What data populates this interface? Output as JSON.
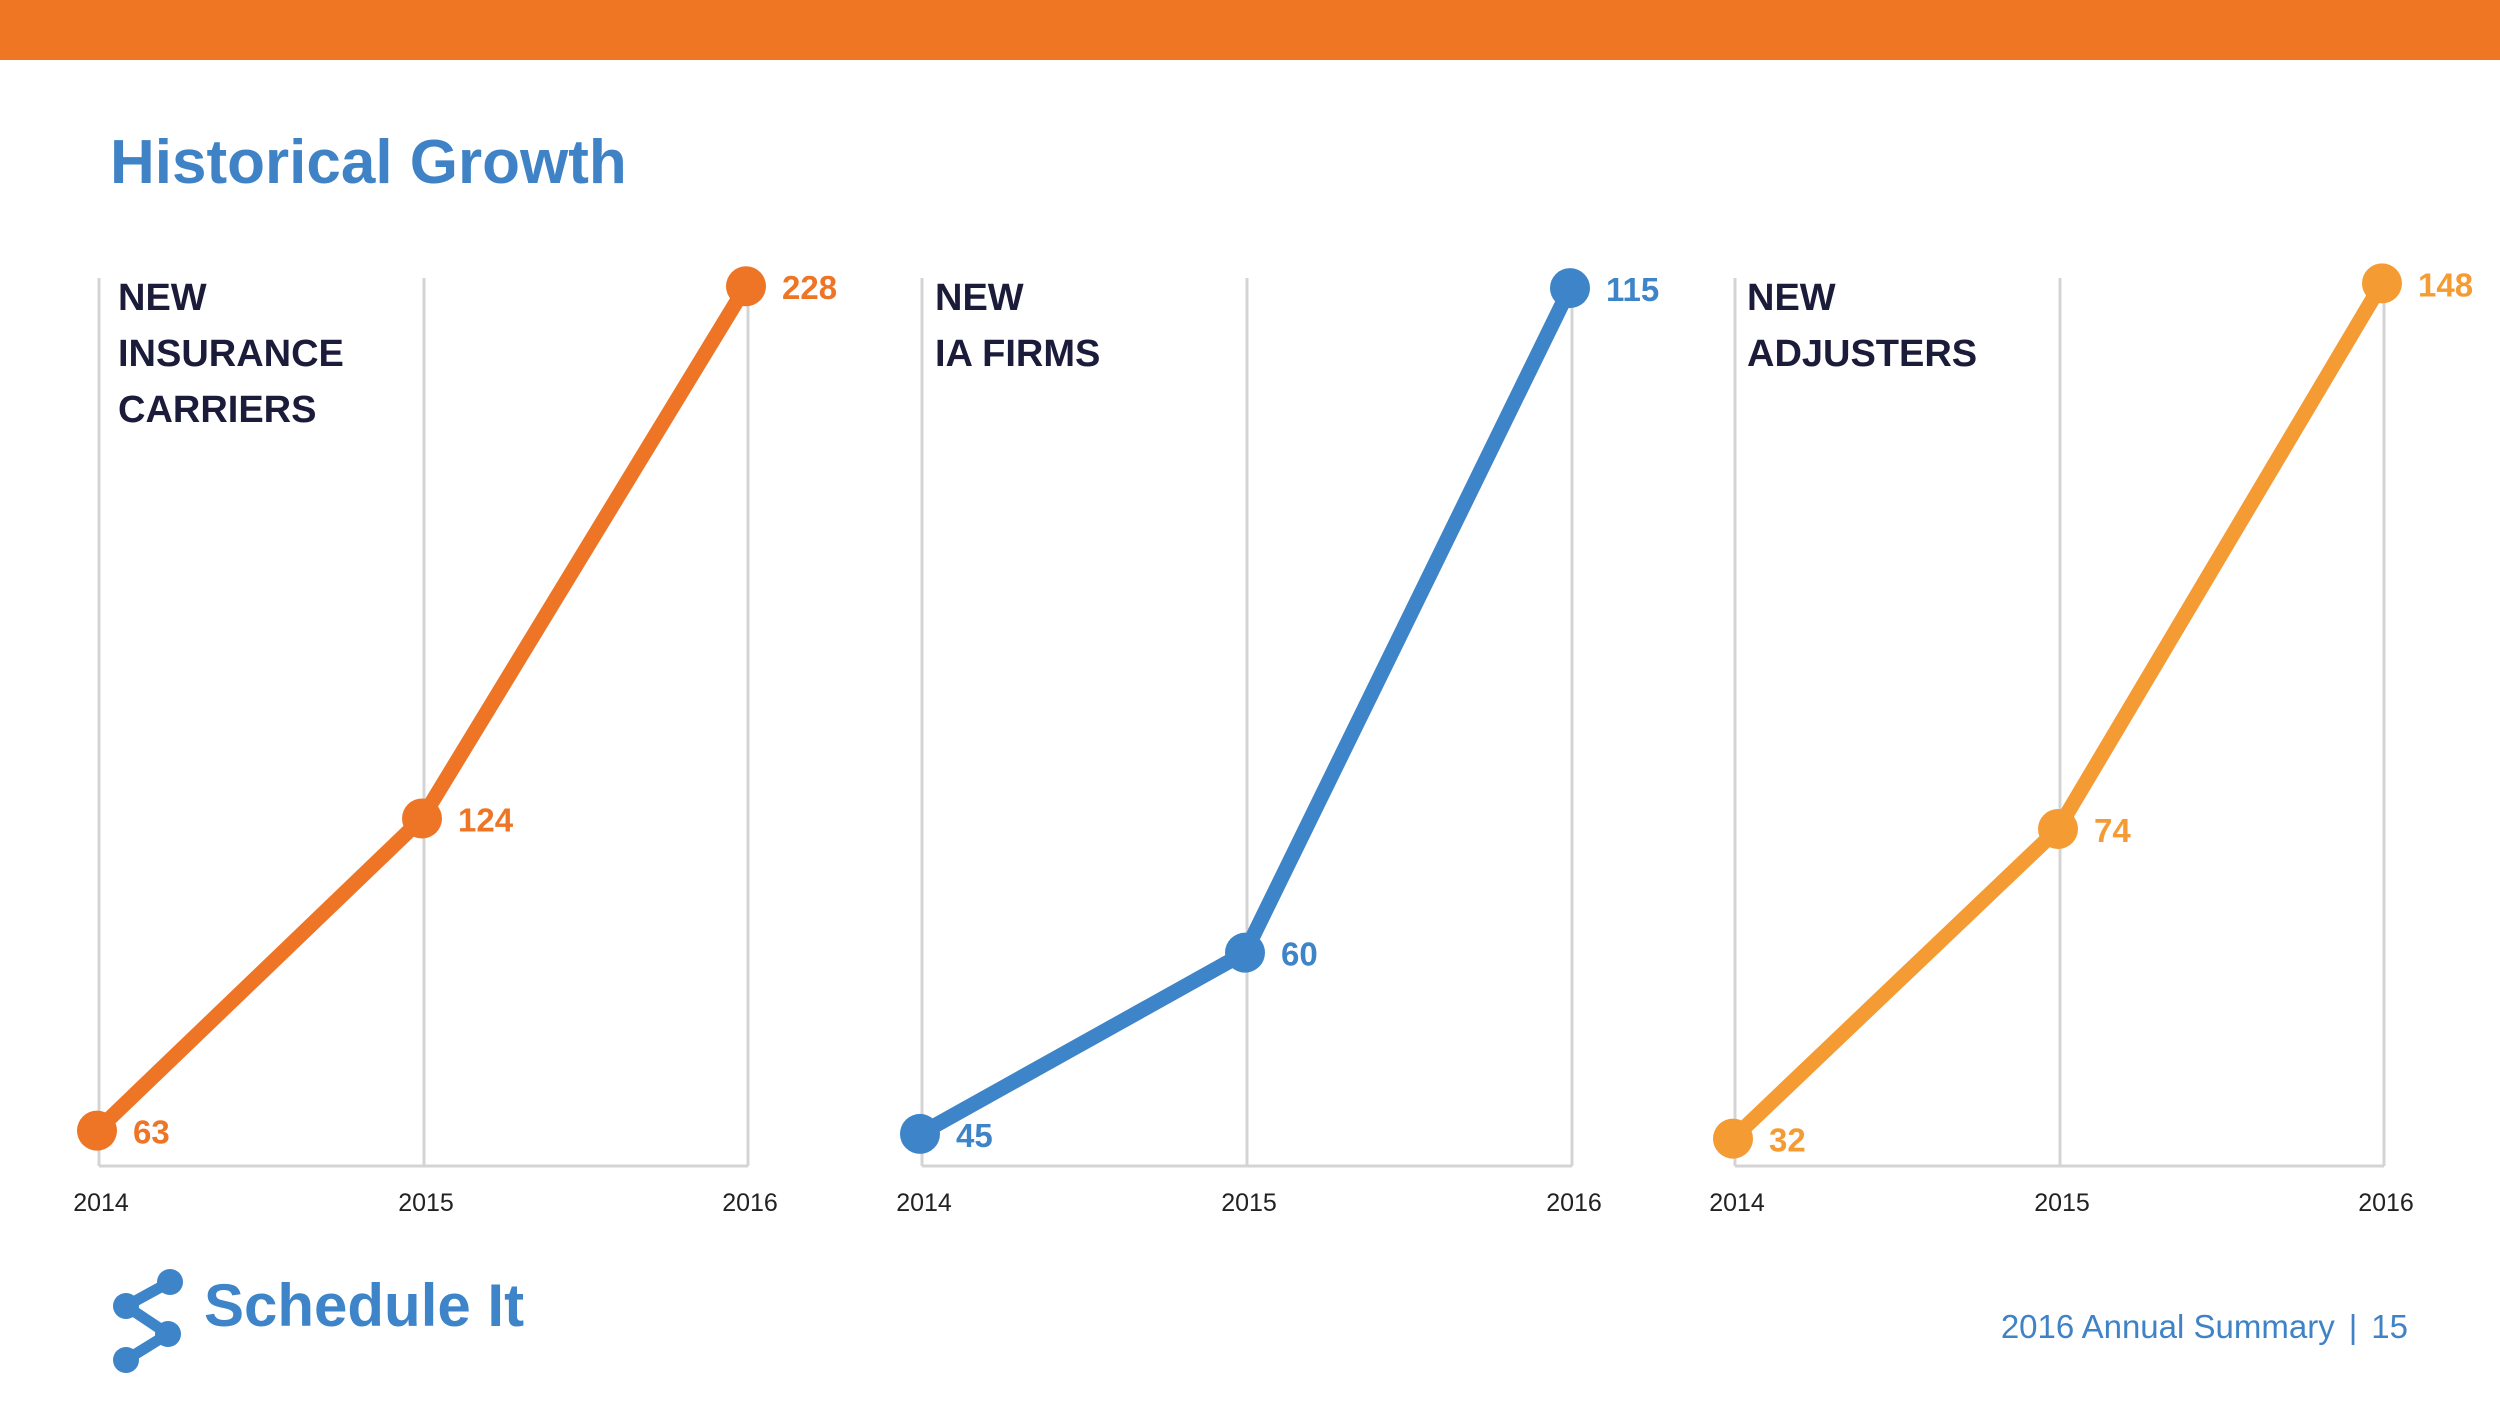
{
  "title": "Historical Growth",
  "colors": {
    "top_bar": "#ef7622",
    "title": "#3f83c6",
    "axis": "#d4d4d4",
    "tick_label": "#222222",
    "chart_title": "#1b1b3a"
  },
  "chart_data": [
    {
      "type": "line",
      "title": "NEW INSURANCE CARRIERS",
      "title_lines": [
        "NEW",
        "INSURANCE",
        "CARRIERS"
      ],
      "categories": [
        "2014",
        "2015",
        "2016"
      ],
      "values": [
        63,
        124,
        228
      ],
      "color": "#ee7526",
      "xlabel": "",
      "ylabel": "",
      "ylim": [
        60,
        230
      ],
      "grid": "vertical"
    },
    {
      "type": "line",
      "title": "NEW IA FIRMS",
      "title_lines": [
        "NEW",
        "IA FIRMS"
      ],
      "categories": [
        "2014",
        "2015",
        "2016"
      ],
      "values": [
        45,
        60,
        115
      ],
      "color": "#3d84c8",
      "xlabel": "",
      "ylabel": "",
      "ylim": [
        44,
        116
      ],
      "grid": "vertical"
    },
    {
      "type": "line",
      "title": "NEW ADJUSTERS",
      "title_lines": [
        "NEW",
        "ADJUSTERS"
      ],
      "categories": [
        "2014",
        "2015",
        "2016"
      ],
      "values": [
        32,
        74,
        148
      ],
      "color": "#f59b33",
      "xlabel": "",
      "ylabel": "",
      "ylim": [
        31,
        149
      ],
      "grid": "vertical"
    }
  ],
  "logo": {
    "text": "Schedule It",
    "icon": "share-nodes-icon",
    "color": "#3d84c8"
  },
  "footer": {
    "label": "2016 Annual Summary",
    "separator": "|",
    "page_number": "15",
    "color": "#3f83c6"
  }
}
